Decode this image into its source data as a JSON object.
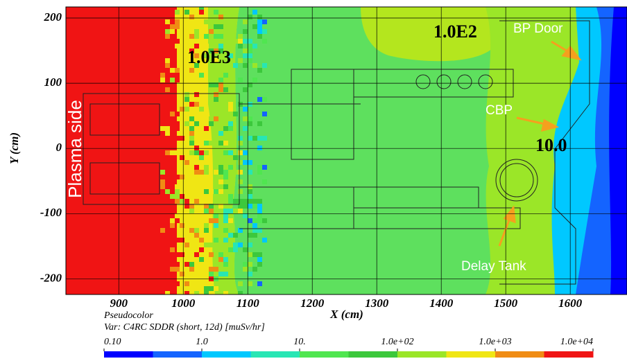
{
  "chart_data": {
    "type": "pseudocolor",
    "legend_title": "Pseudocolor",
    "variable": "Var: C4RC SDDR (short, 12d) [muSv/hr]",
    "x_label": "X (cm)",
    "y_label": "Y (cm)",
    "xlim": [
      818,
      1688
    ],
    "ylim": [
      -224,
      217
    ],
    "xticks": [
      900,
      1000,
      1100,
      1200,
      1300,
      1400,
      1500,
      1600
    ],
    "yticks": [
      -200,
      -100,
      0,
      100,
      200
    ],
    "grid": true,
    "annotations": [
      "1.0E3",
      "1.0E2",
      "BP Door",
      "CBP",
      "10.0",
      "Delay Tank",
      "Plasma side"
    ],
    "colorbar": {
      "lim": [
        0.1,
        10000
      ],
      "log": true,
      "ticks": [
        {
          "value": 0.1,
          "label": "0.10"
        },
        {
          "value": 1,
          "label": "1.0"
        },
        {
          "value": 10,
          "label": "10."
        },
        {
          "value": 100,
          "label": "1.0e+02"
        },
        {
          "value": 1000,
          "label": "1.0e+03"
        },
        {
          "value": 10000,
          "label": "1.0e+04"
        }
      ],
      "colors": [
        "#0000ff",
        "#1464ff",
        "#00c8ff",
        "#28e6b4",
        "#50e650",
        "#3cc83c",
        "#9be628",
        "#f0e614",
        "#f08c14",
        "#f01414"
      ]
    }
  }
}
